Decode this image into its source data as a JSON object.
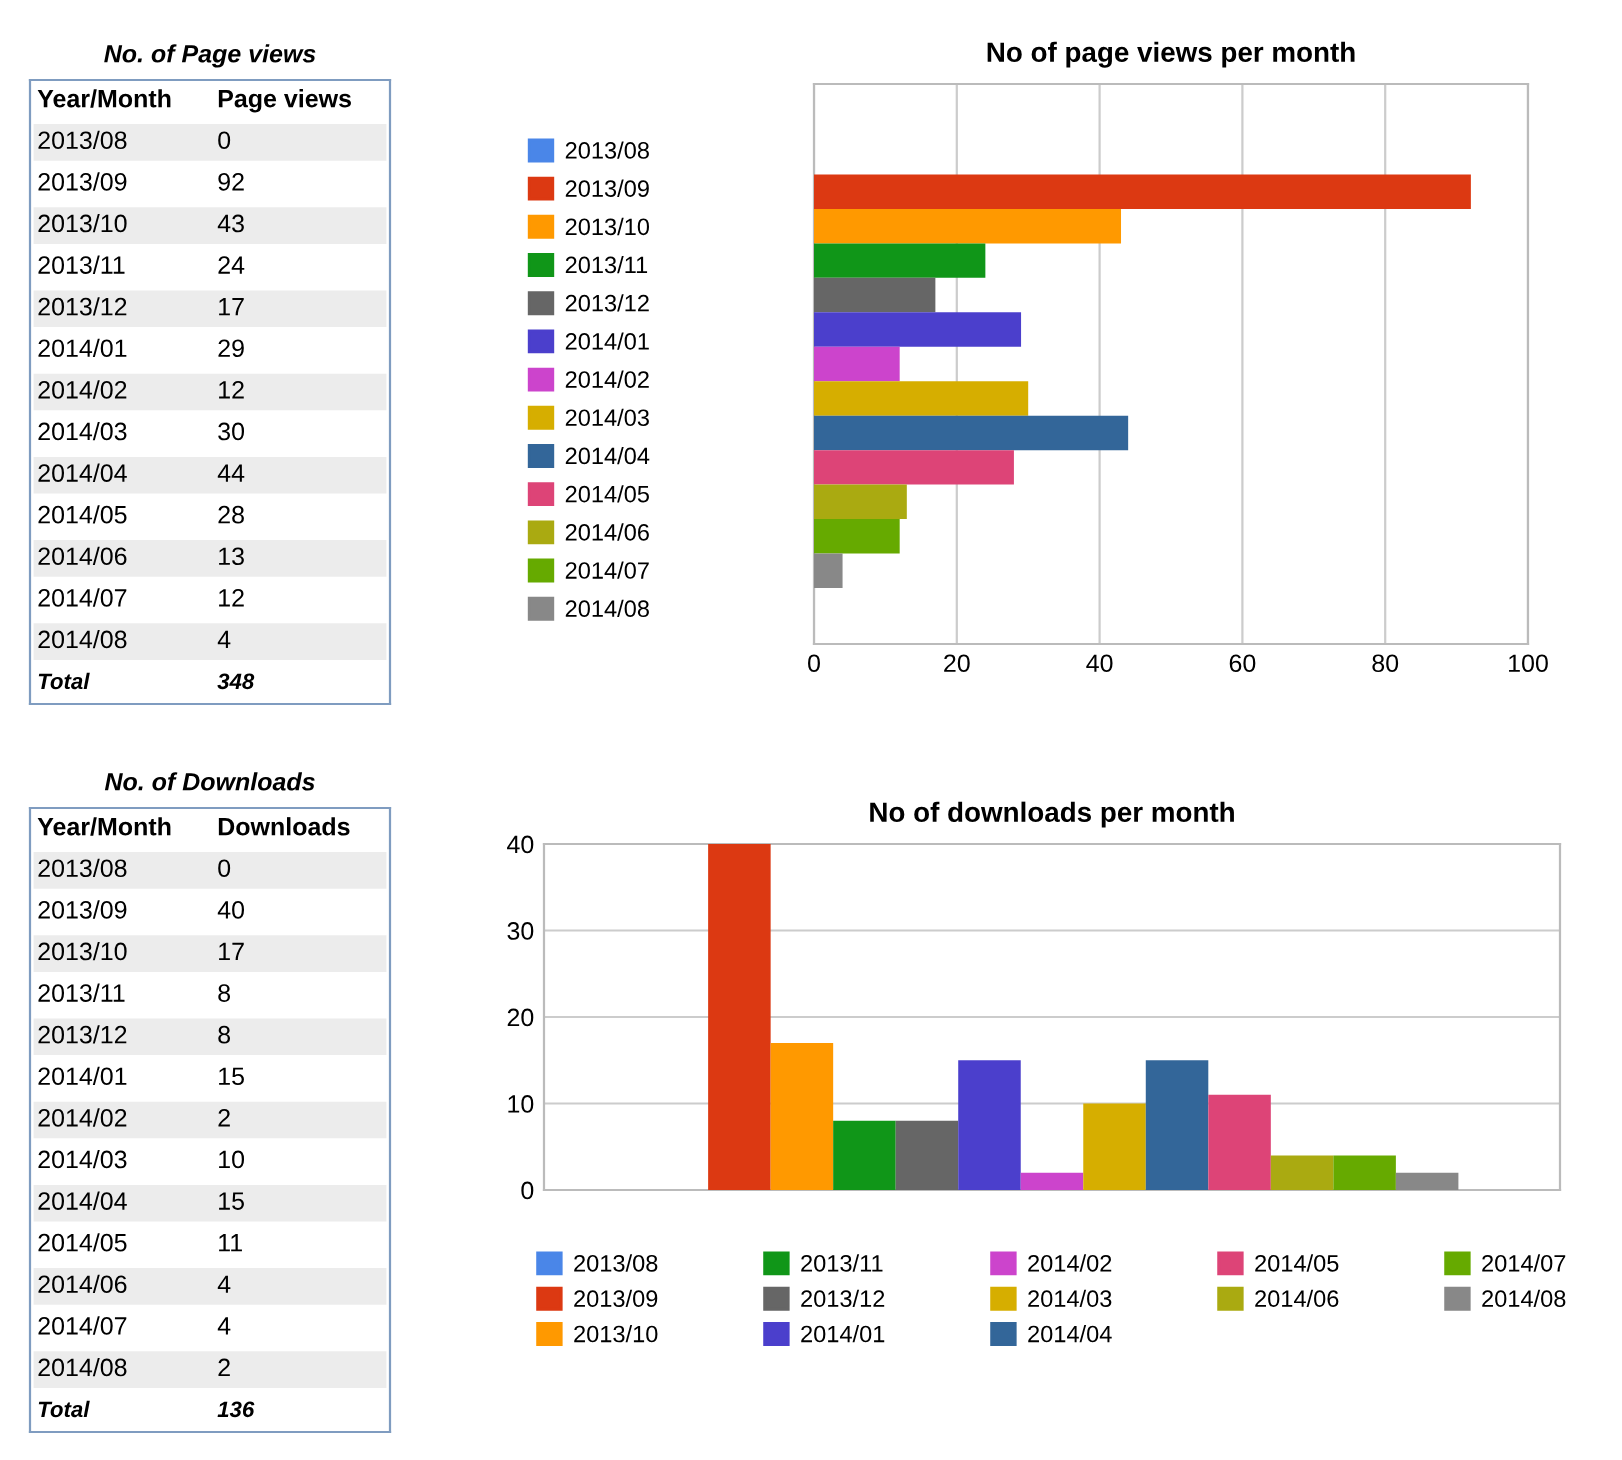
{
  "chart_data": [
    {
      "type": "other",
      "title": "No. of Page views",
      "categories": [
        "2013/08",
        "2013/09",
        "2013/10",
        "2013/11",
        "2013/12",
        "2014/01",
        "2014/02",
        "2014/03",
        "2014/04",
        "2014/05",
        "2014/06",
        "2014/07",
        "2014/08"
      ],
      "values": [
        0,
        92,
        43,
        24,
        17,
        29,
        12,
        30,
        44,
        28,
        13,
        12,
        4
      ],
      "data_labels": true,
      "annotations": [
        "Year/Month",
        "Page views",
        "Total",
        "348"
      ]
    },
    {
      "type": "bar",
      "orientation": "horizontal",
      "title": "No of page views per month",
      "categories": [
        null
      ],
      "series": [
        {
          "name": "2013/08",
          "color": "#4a86e8",
          "values": [
            0
          ]
        },
        {
          "name": "2013/09",
          "color": "#dc3912",
          "values": [
            92
          ]
        },
        {
          "name": "2013/10",
          "color": "#ff9900",
          "values": [
            43
          ]
        },
        {
          "name": "2013/11",
          "color": "#109618",
          "values": [
            24
          ]
        },
        {
          "name": "2013/12",
          "color": "#666666",
          "values": [
            17
          ]
        },
        {
          "name": "2014/01",
          "color": "#4b3fcc",
          "values": [
            29
          ]
        },
        {
          "name": "2014/02",
          "color": "#cc44cc",
          "values": [
            12
          ]
        },
        {
          "name": "2014/03",
          "color": "#d6ae00",
          "values": [
            30
          ]
        },
        {
          "name": "2014/04",
          "color": "#336699",
          "values": [
            44
          ]
        },
        {
          "name": "2014/05",
          "color": "#dd4477",
          "values": [
            28
          ]
        },
        {
          "name": "2014/06",
          "color": "#aaaa11",
          "values": [
            13
          ]
        },
        {
          "name": "2014/07",
          "color": "#66aa00",
          "values": [
            12
          ]
        },
        {
          "name": "2014/08",
          "color": "#888888",
          "values": [
            4
          ]
        }
      ],
      "xlim": [
        0,
        100
      ],
      "xticks": [
        0,
        20,
        40,
        60,
        80,
        100
      ],
      "grid": "x",
      "legend": "left",
      "tick_labels": "x"
    },
    {
      "type": "other",
      "title": "No. of Downloads",
      "categories": [
        "2013/08",
        "2013/09",
        "2013/10",
        "2013/11",
        "2013/12",
        "2014/01",
        "2014/02",
        "2014/03",
        "2014/04",
        "2014/05",
        "2014/06",
        "2014/07",
        "2014/08"
      ],
      "values": [
        0,
        40,
        17,
        8,
        8,
        15,
        2,
        10,
        15,
        11,
        4,
        4,
        2
      ],
      "data_labels": true,
      "annotations": [
        "Year/Month",
        "Downloads",
        "Total",
        "136"
      ]
    },
    {
      "type": "bar",
      "title": "No of downloads per month",
      "categories": [
        null
      ],
      "series": [
        {
          "name": "2013/08",
          "color": "#4a86e8",
          "values": [
            0
          ]
        },
        {
          "name": "2013/09",
          "color": "#dc3912",
          "values": [
            40
          ]
        },
        {
          "name": "2013/10",
          "color": "#ff9900",
          "values": [
            17
          ]
        },
        {
          "name": "2013/11",
          "color": "#109618",
          "values": [
            8
          ]
        },
        {
          "name": "2013/12",
          "color": "#666666",
          "values": [
            8
          ]
        },
        {
          "name": "2014/01",
          "color": "#4b3fcc",
          "values": [
            15
          ]
        },
        {
          "name": "2014/02",
          "color": "#cc44cc",
          "values": [
            2
          ]
        },
        {
          "name": "2014/03",
          "color": "#d6ae00",
          "values": [
            10
          ]
        },
        {
          "name": "2014/04",
          "color": "#336699",
          "values": [
            15
          ]
        },
        {
          "name": "2014/05",
          "color": "#dd4477",
          "values": [
            11
          ]
        },
        {
          "name": "2014/06",
          "color": "#aaaa11",
          "values": [
            4
          ]
        },
        {
          "name": "2014/07",
          "color": "#66aa00",
          "values": [
            4
          ]
        },
        {
          "name": "2014/08",
          "color": "#888888",
          "values": [
            2
          ]
        }
      ],
      "ylim": [
        0,
        40
      ],
      "yticks": [
        0,
        10,
        20,
        30,
        40
      ],
      "grid": "y",
      "legend": "bottom",
      "tick_labels": "y"
    }
  ]
}
